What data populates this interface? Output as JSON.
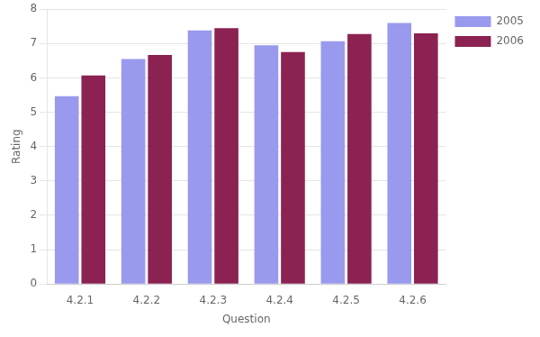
{
  "chart_data": {
    "type": "bar",
    "categories": [
      "4.2.1",
      "4.2.2",
      "4.2.3",
      "4.2.4",
      "4.2.5",
      "4.2.6"
    ],
    "series": [
      {
        "name": "2005",
        "color": "#9999ee",
        "values": [
          5.47,
          6.55,
          7.38,
          6.95,
          7.07,
          7.6
        ]
      },
      {
        "name": "2006",
        "color": "#8b2252",
        "values": [
          6.07,
          6.67,
          7.45,
          6.75,
          7.28,
          7.3
        ]
      }
    ],
    "xlabel": "Question",
    "ylabel": "Rating",
    "ylim": [
      0,
      8
    ],
    "yticks": [
      0,
      1,
      2,
      3,
      4,
      5,
      6,
      7,
      8
    ],
    "grid": "y",
    "legend": "upper right"
  }
}
